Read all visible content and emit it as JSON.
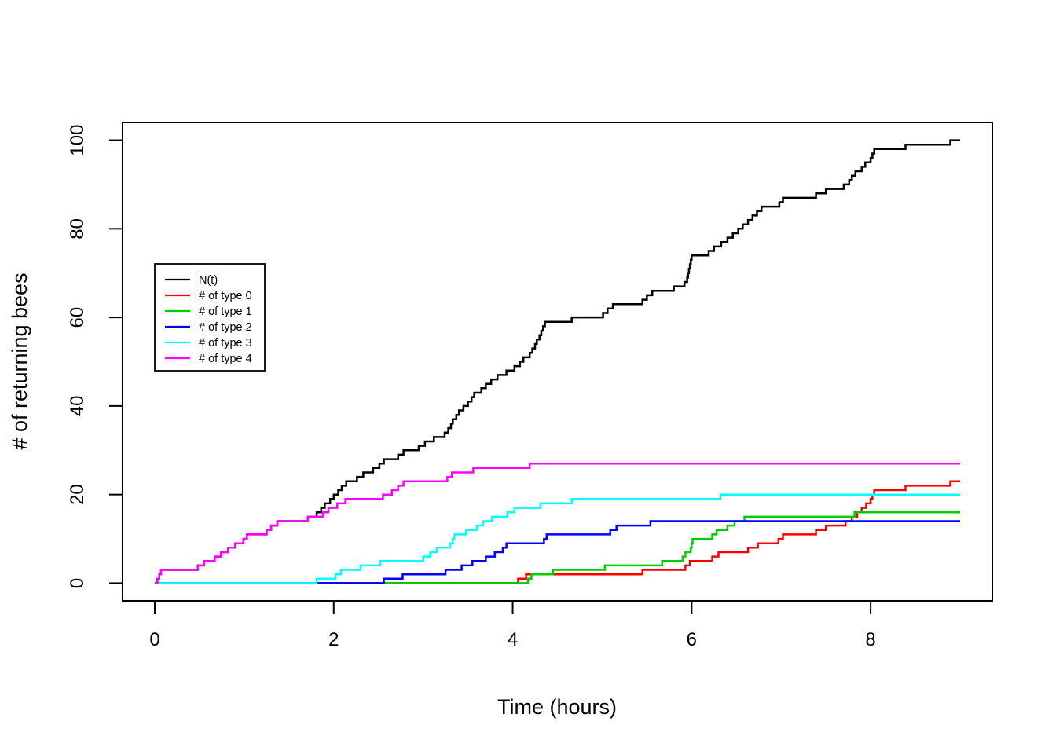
{
  "page": {
    "background": "#ffffff",
    "title": ""
  },
  "chart_data": {
    "type": "line",
    "step": true,
    "title": "",
    "xlabel": "Time (hours)",
    "ylabel": "# of returning bees",
    "xlim": [
      0,
      9
    ],
    "ylim": [
      0,
      100
    ],
    "x_ticks": [
      0,
      2,
      4,
      6,
      8
    ],
    "y_ticks": [
      0,
      20,
      40,
      60,
      80,
      100
    ],
    "grid": false,
    "legend_position": "upper-left-inset",
    "axis_color": "#000000",
    "series": [
      {
        "name": "N(t)",
        "color": "#000000",
        "points": [
          [
            0,
            0
          ],
          [
            0.03,
            1
          ],
          [
            0.05,
            2
          ],
          [
            0.07,
            3
          ],
          [
            0.48,
            4
          ],
          [
            0.55,
            5
          ],
          [
            0.67,
            6
          ],
          [
            0.74,
            7
          ],
          [
            0.82,
            8
          ],
          [
            0.9,
            9
          ],
          [
            0.99,
            10
          ],
          [
            1.03,
            11
          ],
          [
            1.25,
            12
          ],
          [
            1.3,
            13
          ],
          [
            1.37,
            14
          ],
          [
            1.71,
            15
          ],
          [
            1.81,
            16
          ],
          [
            1.86,
            17
          ],
          [
            1.9,
            18
          ],
          [
            1.96,
            19
          ],
          [
            2.0,
            20
          ],
          [
            2.05,
            21
          ],
          [
            2.09,
            22
          ],
          [
            2.14,
            23
          ],
          [
            2.26,
            24
          ],
          [
            2.33,
            25
          ],
          [
            2.44,
            26
          ],
          [
            2.51,
            27
          ],
          [
            2.56,
            28
          ],
          [
            2.72,
            29
          ],
          [
            2.78,
            30
          ],
          [
            2.95,
            31
          ],
          [
            3.02,
            32
          ],
          [
            3.12,
            33
          ],
          [
            3.24,
            34
          ],
          [
            3.28,
            35
          ],
          [
            3.31,
            36
          ],
          [
            3.33,
            37
          ],
          [
            3.37,
            38
          ],
          [
            3.4,
            39
          ],
          [
            3.45,
            40
          ],
          [
            3.5,
            41
          ],
          [
            3.54,
            42
          ],
          [
            3.57,
            43
          ],
          [
            3.65,
            44
          ],
          [
            3.7,
            45
          ],
          [
            3.76,
            46
          ],
          [
            3.83,
            47
          ],
          [
            3.93,
            48
          ],
          [
            4.02,
            49
          ],
          [
            4.08,
            50
          ],
          [
            4.12,
            51
          ],
          [
            4.19,
            52
          ],
          [
            4.22,
            53
          ],
          [
            4.25,
            54
          ],
          [
            4.27,
            55
          ],
          [
            4.3,
            56
          ],
          [
            4.32,
            57
          ],
          [
            4.34,
            58
          ],
          [
            4.36,
            59
          ],
          [
            4.66,
            60
          ],
          [
            5.01,
            61
          ],
          [
            5.06,
            62
          ],
          [
            5.12,
            63
          ],
          [
            5.45,
            64
          ],
          [
            5.5,
            65
          ],
          [
            5.56,
            66
          ],
          [
            5.8,
            67
          ],
          [
            5.92,
            68
          ],
          [
            5.95,
            69
          ],
          [
            5.96,
            70
          ],
          [
            5.97,
            71
          ],
          [
            5.98,
            72
          ],
          [
            5.99,
            73
          ],
          [
            6.0,
            74
          ],
          [
            6.19,
            75
          ],
          [
            6.25,
            76
          ],
          [
            6.33,
            77
          ],
          [
            6.4,
            78
          ],
          [
            6.46,
            79
          ],
          [
            6.52,
            80
          ],
          [
            6.57,
            81
          ],
          [
            6.63,
            82
          ],
          [
            6.68,
            83
          ],
          [
            6.73,
            84
          ],
          [
            6.78,
            85
          ],
          [
            6.98,
            86
          ],
          [
            7.02,
            87
          ],
          [
            7.39,
            88
          ],
          [
            7.5,
            89
          ],
          [
            7.7,
            90
          ],
          [
            7.76,
            91
          ],
          [
            7.79,
            92
          ],
          [
            7.83,
            93
          ],
          [
            7.9,
            94
          ],
          [
            7.94,
            95
          ],
          [
            8.0,
            96
          ],
          [
            8.02,
            97
          ],
          [
            8.04,
            98
          ],
          [
            8.39,
            99
          ],
          [
            8.89,
            100
          ],
          [
            9.0,
            100
          ]
        ]
      },
      {
        "name": "# of type 0",
        "color": "#FF0000",
        "points": [
          [
            0,
            0
          ],
          [
            4.06,
            1
          ],
          [
            4.15,
            2
          ],
          [
            5.45,
            3
          ],
          [
            5.93,
            4
          ],
          [
            5.98,
            5
          ],
          [
            6.23,
            6
          ],
          [
            6.3,
            7
          ],
          [
            6.63,
            8
          ],
          [
            6.74,
            9
          ],
          [
            6.97,
            10
          ],
          [
            7.02,
            11
          ],
          [
            7.39,
            12
          ],
          [
            7.5,
            13
          ],
          [
            7.72,
            14
          ],
          [
            7.79,
            15
          ],
          [
            7.85,
            16
          ],
          [
            7.9,
            17
          ],
          [
            7.95,
            18
          ],
          [
            8.0,
            19
          ],
          [
            8.02,
            20
          ],
          [
            8.04,
            21
          ],
          [
            8.39,
            22
          ],
          [
            8.89,
            23
          ],
          [
            9.0,
            23
          ]
        ]
      },
      {
        "name": "# of type 1",
        "color": "#00CD00",
        "points": [
          [
            0,
            0
          ],
          [
            4.17,
            1
          ],
          [
            4.21,
            2
          ],
          [
            4.45,
            3
          ],
          [
            5.03,
            4
          ],
          [
            5.67,
            5
          ],
          [
            5.9,
            6
          ],
          [
            5.93,
            7
          ],
          [
            5.99,
            8
          ],
          [
            6.0,
            9
          ],
          [
            6.01,
            10
          ],
          [
            6.23,
            11
          ],
          [
            6.28,
            12
          ],
          [
            6.4,
            13
          ],
          [
            6.48,
            14
          ],
          [
            6.59,
            15
          ],
          [
            7.82,
            16
          ],
          [
            9.0,
            16
          ]
        ]
      },
      {
        "name": "# of type 2",
        "color": "#0000FF",
        "points": [
          [
            0,
            0
          ],
          [
            2.56,
            1
          ],
          [
            2.77,
            2
          ],
          [
            3.25,
            3
          ],
          [
            3.43,
            4
          ],
          [
            3.55,
            5
          ],
          [
            3.7,
            6
          ],
          [
            3.8,
            7
          ],
          [
            3.89,
            8
          ],
          [
            3.93,
            9
          ],
          [
            4.35,
            10
          ],
          [
            4.38,
            11
          ],
          [
            5.09,
            12
          ],
          [
            5.16,
            13
          ],
          [
            5.54,
            14
          ],
          [
            9.0,
            14
          ]
        ]
      },
      {
        "name": "# of type 3",
        "color": "#00FFFF",
        "points": [
          [
            0,
            0
          ],
          [
            1.81,
            1
          ],
          [
            2.02,
            2
          ],
          [
            2.08,
            3
          ],
          [
            2.3,
            4
          ],
          [
            2.52,
            5
          ],
          [
            3.0,
            6
          ],
          [
            3.08,
            7
          ],
          [
            3.15,
            8
          ],
          [
            3.3,
            9
          ],
          [
            3.33,
            10
          ],
          [
            3.35,
            11
          ],
          [
            3.48,
            12
          ],
          [
            3.6,
            13
          ],
          [
            3.67,
            14
          ],
          [
            3.77,
            15
          ],
          [
            3.94,
            16
          ],
          [
            4.02,
            17
          ],
          [
            4.31,
            18
          ],
          [
            4.66,
            19
          ],
          [
            6.32,
            20
          ],
          [
            9.0,
            20
          ]
        ]
      },
      {
        "name": "# of type 4",
        "color": "#FF00FF",
        "points": [
          [
            0,
            0
          ],
          [
            0.03,
            1
          ],
          [
            0.05,
            2
          ],
          [
            0.07,
            3
          ],
          [
            0.48,
            4
          ],
          [
            0.55,
            5
          ],
          [
            0.67,
            6
          ],
          [
            0.74,
            7
          ],
          [
            0.82,
            8
          ],
          [
            0.9,
            9
          ],
          [
            0.99,
            10
          ],
          [
            1.03,
            11
          ],
          [
            1.25,
            12
          ],
          [
            1.3,
            13
          ],
          [
            1.37,
            14
          ],
          [
            1.71,
            15
          ],
          [
            1.88,
            16
          ],
          [
            1.94,
            17
          ],
          [
            2.04,
            18
          ],
          [
            2.13,
            19
          ],
          [
            2.55,
            20
          ],
          [
            2.65,
            21
          ],
          [
            2.72,
            22
          ],
          [
            2.78,
            23
          ],
          [
            3.27,
            24
          ],
          [
            3.32,
            25
          ],
          [
            3.56,
            26
          ],
          [
            4.19,
            27
          ],
          [
            9.0,
            27
          ]
        ]
      }
    ],
    "draw_order": [
      0,
      1,
      2,
      3,
      4,
      5
    ],
    "legend_order": [
      0,
      1,
      2,
      3,
      4,
      5
    ]
  }
}
